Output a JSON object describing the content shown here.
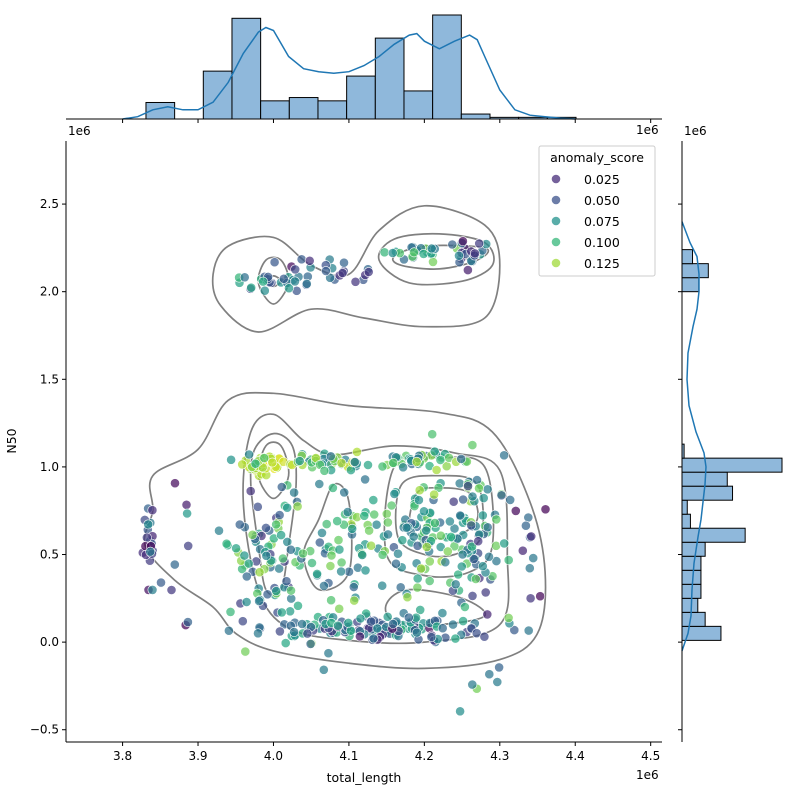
{
  "chart_data": {
    "type": "scatter",
    "xlabel": "total_length",
    "ylabel": "N50",
    "x_multiplier": "1e6",
    "y_multiplier": "1e6",
    "xlim": [
      3.725,
      4.515
    ],
    "ylim": [
      -0.57,
      2.86
    ],
    "x_ticks": [
      3.8,
      3.9,
      4.0,
      4.1,
      4.2,
      4.3,
      4.4,
      4.5
    ],
    "x_tick_labels": [
      "3.8",
      "3.9",
      "4.0",
      "4.1",
      "4.2",
      "4.3",
      "4.4",
      "4.5"
    ],
    "y_ticks": [
      -0.5,
      0.0,
      0.5,
      1.0,
      1.5,
      2.0,
      2.5
    ],
    "y_tick_labels": [
      "−0.5",
      "0.0",
      "0.5",
      "1.0",
      "1.5",
      "2.0",
      "2.5"
    ],
    "legend": {
      "title": "anomaly_score",
      "placement": "top-right",
      "entries": [
        {
          "label": "0.025",
          "color": "#472c7a"
        },
        {
          "label": "0.050",
          "color": "#3b528b"
        },
        {
          "label": "0.075",
          "color": "#21918c"
        },
        {
          "label": "0.100",
          "color": "#35b779"
        },
        {
          "label": "0.125",
          "color": "#a0da39"
        }
      ]
    },
    "colormap": [
      "#440154",
      "#472c7a",
      "#3b528b",
      "#2c728e",
      "#21918c",
      "#28ae80",
      "#5ec962",
      "#addc30",
      "#fde725"
    ],
    "hue_range": [
      0.0,
      0.15
    ],
    "scatter_clusters": [
      {
        "cx": 3.835,
        "cy": 0.6,
        "sx": 0.004,
        "sy": 0.17,
        "n": 20,
        "hue": [
          0.0,
          0.07
        ]
      },
      {
        "cx": 3.875,
        "cy": 0.4,
        "sx": 0.015,
        "sy": 0.25,
        "n": 7,
        "hue": [
          0.0,
          0.05
        ]
      },
      {
        "cx": 3.985,
        "cy": 1.01,
        "sx": 0.015,
        "sy": 0.025,
        "n": 45,
        "hue": [
          0.12,
          0.15
        ]
      },
      {
        "cx": 3.99,
        "cy": 0.48,
        "sx": 0.03,
        "sy": 0.22,
        "n": 75,
        "hue": [
          0.02,
          0.13
        ]
      },
      {
        "cx": 4.07,
        "cy": 1.03,
        "sx": 0.04,
        "sy": 0.02,
        "n": 40,
        "hue": [
          0.06,
          0.14
        ]
      },
      {
        "cx": 4.09,
        "cy": 0.5,
        "sx": 0.06,
        "sy": 0.25,
        "n": 100,
        "hue": [
          0.04,
          0.13
        ]
      },
      {
        "cx": 4.09,
        "cy": 0.08,
        "sx": 0.07,
        "sy": 0.03,
        "n": 85,
        "hue": [
          0.02,
          0.1
        ]
      },
      {
        "cx": 4.19,
        "cy": 1.04,
        "sx": 0.04,
        "sy": 0.02,
        "n": 40,
        "hue": [
          0.05,
          0.13
        ]
      },
      {
        "cx": 4.2,
        "cy": 0.65,
        "sx": 0.04,
        "sy": 0.17,
        "n": 80,
        "hue": [
          0.04,
          0.13
        ]
      },
      {
        "cx": 4.2,
        "cy": 0.08,
        "sx": 0.05,
        "sy": 0.05,
        "n": 45,
        "hue": [
          0.0,
          0.09
        ]
      },
      {
        "cx": 4.27,
        "cy": 0.55,
        "sx": 0.02,
        "sy": 0.28,
        "n": 70,
        "hue": [
          0.02,
          0.12
        ]
      },
      {
        "cx": 4.33,
        "cy": 0.55,
        "sx": 0.02,
        "sy": 0.15,
        "n": 12,
        "hue": [
          0.0,
          0.06
        ]
      },
      {
        "cx": 4.0,
        "cy": 2.06,
        "sx": 0.025,
        "sy": 0.03,
        "n": 25,
        "hue": [
          0.03,
          0.1
        ]
      },
      {
        "cx": 4.08,
        "cy": 2.12,
        "sx": 0.035,
        "sy": 0.04,
        "n": 22,
        "hue": [
          0.0,
          0.07
        ]
      },
      {
        "cx": 4.19,
        "cy": 2.22,
        "sx": 0.025,
        "sy": 0.025,
        "n": 25,
        "hue": [
          0.05,
          0.12
        ]
      },
      {
        "cx": 4.26,
        "cy": 2.22,
        "sx": 0.015,
        "sy": 0.03,
        "n": 20,
        "hue": [
          0.0,
          0.08
        ]
      }
    ],
    "marginal_x_histogram": {
      "bin_edges": [
        3.831,
        3.869,
        3.907,
        3.945,
        3.983,
        4.021,
        4.059,
        4.097,
        4.135,
        4.173,
        4.211,
        4.249,
        4.287,
        4.325,
        4.363,
        4.401
      ],
      "counts": [
        10,
        0,
        29,
        61,
        11,
        13,
        11,
        26,
        49,
        17,
        63,
        3,
        1,
        1,
        1
      ],
      "kde_x": [
        3.8,
        3.82,
        3.84,
        3.86,
        3.88,
        3.9,
        3.92,
        3.94,
        3.96,
        3.98,
        3.99,
        4.0,
        4.02,
        4.04,
        4.06,
        4.08,
        4.1,
        4.12,
        4.14,
        4.16,
        4.18,
        4.19,
        4.2,
        4.22,
        4.24,
        4.26,
        4.27,
        4.28,
        4.3,
        4.32,
        4.34,
        4.36,
        4.38,
        4.4
      ],
      "kde_y": [
        0.0,
        1.5,
        6,
        8,
        6,
        6,
        11,
        24,
        43,
        57,
        60,
        58,
        41,
        33,
        31,
        30,
        31,
        35,
        41,
        49,
        55,
        56,
        51,
        46,
        51,
        55,
        52,
        41,
        19,
        6,
        2.5,
        1.5,
        0.6,
        0.0
      ]
    },
    "marginal_y_histogram": {
      "bin_edges": [
        0.01,
        0.09,
        0.17,
        0.25,
        0.33,
        0.41,
        0.49,
        0.57,
        0.65,
        0.73,
        0.81,
        0.89,
        0.97,
        1.05,
        1.13,
        2.0,
        2.08,
        2.16,
        2.24
      ],
      "counts": [
        37,
        22,
        15,
        18,
        18,
        18,
        22,
        60,
        8,
        5,
        48,
        43,
        95,
        2,
        0,
        16,
        25,
        10,
        70
      ],
      "kde_y": [
        -0.05,
        0.05,
        0.15,
        0.3,
        0.45,
        0.6,
        0.7,
        0.8,
        0.9,
        1.0,
        1.08,
        1.2,
        1.35,
        1.5,
        1.65,
        1.8,
        1.9,
        2.0,
        2.1,
        2.2,
        2.28,
        2.4
      ],
      "kde_x": [
        0.0,
        6,
        9,
        10,
        12,
        16,
        19,
        21,
        23,
        24,
        22,
        14,
        7,
        5,
        6,
        11,
        15,
        17,
        17,
        15,
        8,
        0.0
      ]
    },
    "contours": [
      [
        [
          3.84,
          0.75
        ],
        [
          3.84,
          0.95
        ],
        [
          3.9,
          1.1
        ],
        [
          3.94,
          1.38
        ],
        [
          4.0,
          1.42
        ],
        [
          4.1,
          1.35
        ],
        [
          4.22,
          1.31
        ],
        [
          4.29,
          1.2
        ],
        [
          4.34,
          0.8
        ],
        [
          4.36,
          0.4
        ],
        [
          4.35,
          0.05
        ],
        [
          4.3,
          -0.1
        ],
        [
          4.2,
          -0.15
        ],
        [
          4.1,
          -0.12
        ],
        [
          4.0,
          -0.05
        ],
        [
          3.95,
          0.05
        ],
        [
          3.92,
          0.2
        ],
        [
          3.87,
          0.35
        ],
        [
          3.83,
          0.55
        ]
      ],
      [
        [
          3.96,
          0.8
        ],
        [
          3.97,
          1.2
        ],
        [
          4.0,
          1.3
        ],
        [
          4.04,
          1.15
        ],
        [
          4.08,
          1.07
        ],
        [
          4.16,
          1.12
        ],
        [
          4.24,
          1.08
        ],
        [
          4.3,
          0.98
        ],
        [
          4.31,
          0.5
        ],
        [
          4.3,
          0.1
        ],
        [
          4.2,
          0.0
        ],
        [
          4.1,
          0.01
        ],
        [
          4.02,
          0.08
        ],
        [
          3.98,
          0.3
        ]
      ],
      [
        [
          3.97,
          0.9
        ],
        [
          3.975,
          1.1
        ],
        [
          4.0,
          1.19
        ],
        [
          4.025,
          1.12
        ],
        [
          4.03,
          0.9
        ],
        [
          4.02,
          0.55
        ],
        [
          4.01,
          0.3
        ],
        [
          3.99,
          0.3
        ],
        [
          3.98,
          0.55
        ]
      ],
      [
        [
          3.98,
          0.95
        ],
        [
          3.99,
          1.12
        ],
        [
          4.01,
          1.12
        ],
        [
          4.02,
          0.95
        ],
        [
          4.0,
          0.82
        ]
      ],
      [
        [
          4.15,
          0.5
        ],
        [
          4.16,
          1.0
        ],
        [
          4.22,
          1.05
        ],
        [
          4.28,
          1.0
        ],
        [
          4.29,
          0.55
        ],
        [
          4.26,
          0.4
        ],
        [
          4.2,
          0.38
        ]
      ],
      [
        [
          4.165,
          0.6
        ],
        [
          4.17,
          0.9
        ],
        [
          4.22,
          0.95
        ],
        [
          4.27,
          0.9
        ],
        [
          4.275,
          0.6
        ],
        [
          4.24,
          0.5
        ],
        [
          4.2,
          0.5
        ]
      ],
      [
        [
          4.18,
          0.65
        ],
        [
          4.19,
          0.85
        ],
        [
          4.22,
          0.88
        ],
        [
          4.26,
          0.85
        ],
        [
          4.27,
          0.7
        ],
        [
          4.24,
          0.6
        ],
        [
          4.2,
          0.6
        ]
      ],
      [
        [
          4.04,
          0.5
        ],
        [
          4.06,
          0.7
        ],
        [
          4.08,
          0.9
        ],
        [
          4.1,
          0.8
        ],
        [
          4.1,
          0.4
        ],
        [
          4.06,
          0.3
        ]
      ],
      [
        [
          4.15,
          0.22
        ],
        [
          4.18,
          0.3
        ],
        [
          4.25,
          0.25
        ],
        [
          4.28,
          0.15
        ],
        [
          4.22,
          0.1
        ],
        [
          4.16,
          0.12
        ]
      ],
      [
        [
          3.92,
          2.1
        ],
        [
          3.94,
          2.26
        ],
        [
          4.0,
          2.31
        ],
        [
          4.05,
          2.15
        ],
        [
          4.1,
          2.1
        ],
        [
          4.14,
          2.35
        ],
        [
          4.2,
          2.49
        ],
        [
          4.28,
          2.38
        ],
        [
          4.3,
          2.15
        ],
        [
          4.28,
          1.85
        ],
        [
          4.2,
          1.8
        ],
        [
          4.12,
          1.85
        ],
        [
          4.05,
          1.9
        ],
        [
          3.98,
          1.77
        ],
        [
          3.93,
          1.92
        ]
      ],
      [
        [
          3.98,
          2.05
        ],
        [
          3.99,
          2.18
        ],
        [
          4.01,
          2.18
        ],
        [
          4.02,
          2.05
        ],
        [
          4.0,
          1.93
        ]
      ],
      [
        [
          3.99,
          2.06
        ],
        [
          4.0,
          2.09
        ],
        [
          4.01,
          2.06
        ],
        [
          4.0,
          2.03
        ]
      ],
      [
        [
          4.14,
          2.18
        ],
        [
          4.16,
          2.3
        ],
        [
          4.22,
          2.33
        ],
        [
          4.28,
          2.28
        ],
        [
          4.29,
          2.15
        ],
        [
          4.25,
          2.06
        ],
        [
          4.18,
          2.05
        ]
      ],
      [
        [
          4.16,
          2.2
        ],
        [
          4.2,
          2.26
        ],
        [
          4.28,
          2.25
        ],
        [
          4.27,
          2.18
        ],
        [
          4.22,
          2.13
        ],
        [
          4.17,
          2.15
        ]
      ],
      [
        [
          4.25,
          2.22
        ],
        [
          4.255,
          2.25
        ],
        [
          4.265,
          2.24
        ],
        [
          4.265,
          2.19
        ],
        [
          4.255,
          2.19
        ]
      ]
    ]
  }
}
